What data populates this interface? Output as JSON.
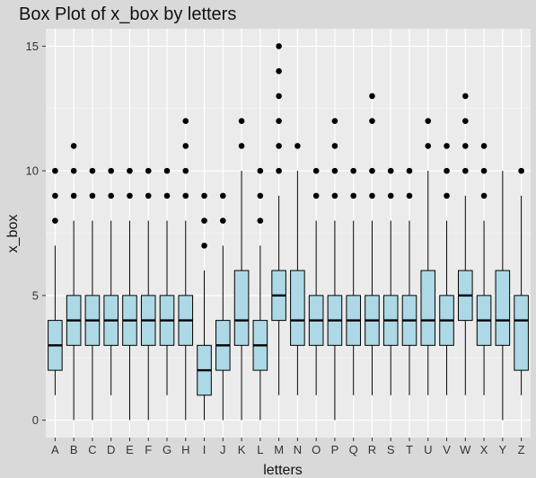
{
  "chart_data": {
    "type": "boxplot",
    "title": "Box Plot of x_box by letters",
    "xlabel": "letters",
    "ylabel": "x_box",
    "ylim": [
      -0.7,
      15.7
    ],
    "yticks": [
      0,
      5,
      10,
      15
    ],
    "grid": true,
    "legend": "none",
    "categories": [
      "A",
      "B",
      "C",
      "D",
      "E",
      "F",
      "G",
      "H",
      "I",
      "J",
      "K",
      "L",
      "M",
      "N",
      "O",
      "P",
      "Q",
      "R",
      "S",
      "T",
      "U",
      "V",
      "W",
      "X",
      "Y",
      "Z"
    ],
    "boxes": [
      {
        "q1": 2,
        "median": 3,
        "q3": 4,
        "whisker_low": 1,
        "whisker_high": 7,
        "outliers": [
          8,
          9,
          10
        ]
      },
      {
        "q1": 3,
        "median": 4,
        "q3": 5,
        "whisker_low": 0,
        "whisker_high": 8,
        "outliers": [
          9,
          10,
          11
        ]
      },
      {
        "q1": 3,
        "median": 4,
        "q3": 5,
        "whisker_low": 0,
        "whisker_high": 8,
        "outliers": [
          9,
          10
        ]
      },
      {
        "q1": 3,
        "median": 4,
        "q3": 5,
        "whisker_low": 1,
        "whisker_high": 8,
        "outliers": [
          9,
          10
        ]
      },
      {
        "q1": 3,
        "median": 4,
        "q3": 5,
        "whisker_low": 0,
        "whisker_high": 8,
        "outliers": [
          9,
          10
        ]
      },
      {
        "q1": 3,
        "median": 4,
        "q3": 5,
        "whisker_low": 0,
        "whisker_high": 8,
        "outliers": [
          9,
          10
        ]
      },
      {
        "q1": 3,
        "median": 4,
        "q3": 5,
        "whisker_low": 1,
        "whisker_high": 8,
        "outliers": [
          9,
          10
        ]
      },
      {
        "q1": 3,
        "median": 4,
        "q3": 5,
        "whisker_low": 0,
        "whisker_high": 8,
        "outliers": [
          9,
          10,
          11,
          12
        ]
      },
      {
        "q1": 1,
        "median": 2,
        "q3": 3,
        "whisker_low": 0,
        "whisker_high": 6,
        "outliers": [
          7,
          8,
          9
        ]
      },
      {
        "q1": 2,
        "median": 3,
        "q3": 4,
        "whisker_low": 0,
        "whisker_high": 7,
        "outliers": [
          8,
          9
        ]
      },
      {
        "q1": 3,
        "median": 4,
        "q3": 6,
        "whisker_low": 0,
        "whisker_high": 10,
        "outliers": [
          11,
          12
        ]
      },
      {
        "q1": 2,
        "median": 3,
        "q3": 4,
        "whisker_low": 0,
        "whisker_high": 7,
        "outliers": [
          8,
          9,
          10
        ]
      },
      {
        "q1": 4,
        "median": 5,
        "q3": 6,
        "whisker_low": 1,
        "whisker_high": 9,
        "outliers": [
          10,
          11,
          12,
          13,
          14,
          15
        ]
      },
      {
        "q1": 3,
        "median": 4,
        "q3": 6,
        "whisker_low": 1,
        "whisker_high": 10,
        "outliers": [
          11
        ]
      },
      {
        "q1": 3,
        "median": 4,
        "q3": 5,
        "whisker_low": 1,
        "whisker_high": 8,
        "outliers": [
          9,
          10
        ]
      },
      {
        "q1": 3,
        "median": 4,
        "q3": 5,
        "whisker_low": 0,
        "whisker_high": 8,
        "outliers": [
          9,
          10,
          11,
          12
        ]
      },
      {
        "q1": 3,
        "median": 4,
        "q3": 5,
        "whisker_low": 1,
        "whisker_high": 8,
        "outliers": [
          9,
          10
        ]
      },
      {
        "q1": 3,
        "median": 4,
        "q3": 5,
        "whisker_low": 1,
        "whisker_high": 8,
        "outliers": [
          9,
          10,
          12,
          13
        ]
      },
      {
        "q1": 3,
        "median": 4,
        "q3": 5,
        "whisker_low": 1,
        "whisker_high": 8,
        "outliers": [
          9,
          10
        ]
      },
      {
        "q1": 3,
        "median": 4,
        "q3": 5,
        "whisker_low": 1,
        "whisker_high": 8,
        "outliers": [
          9,
          10
        ]
      },
      {
        "q1": 3,
        "median": 4,
        "q3": 6,
        "whisker_low": 1,
        "whisker_high": 10,
        "outliers": [
          11,
          12
        ]
      },
      {
        "q1": 3,
        "median": 4,
        "q3": 5,
        "whisker_low": 1,
        "whisker_high": 8,
        "outliers": [
          9,
          10,
          11
        ]
      },
      {
        "q1": 4,
        "median": 5,
        "q3": 6,
        "whisker_low": 1,
        "whisker_high": 9,
        "outliers": [
          10,
          11,
          12,
          13
        ]
      },
      {
        "q1": 3,
        "median": 4,
        "q3": 5,
        "whisker_low": 1,
        "whisker_high": 8,
        "outliers": [
          9,
          10,
          11
        ]
      },
      {
        "q1": 3,
        "median": 4,
        "q3": 6,
        "whisker_low": 0,
        "whisker_high": 10,
        "outliers": []
      },
      {
        "q1": 2,
        "median": 4,
        "q3": 5,
        "whisker_low": 1,
        "whisker_high": 9,
        "outliers": [
          10
        ]
      }
    ],
    "colors": {
      "panel": "#ebebeb",
      "background": "#d9d9d9",
      "grid_major": "#ffffff",
      "grid_minor": "#f5f5f5",
      "box_fill": "#add8e6",
      "box_stroke": "#000000",
      "outlier": "#000000"
    }
  }
}
